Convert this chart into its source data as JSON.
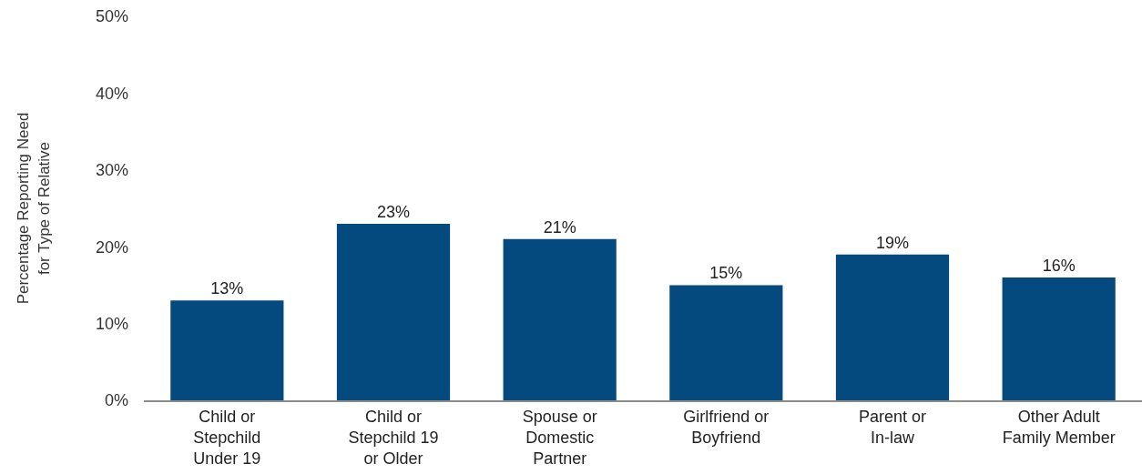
{
  "chart_data": {
    "type": "bar",
    "ylabel": "Percentage Reporting Need for Type of Relative",
    "categories": [
      "Child or Stepchild Under 19",
      "Child or Stepchild 19 or Older",
      "Spouse or Domestic Partner",
      "Girlfriend or Boyfriend",
      "Parent or In-law",
      "Other Adult Family Member"
    ],
    "values": [
      13,
      23,
      21,
      15,
      19,
      16
    ],
    "value_labels": [
      "13%",
      "23%",
      "21%",
      "15%",
      "19%",
      "16%"
    ],
    "color": "#044a7f",
    "ylim": [
      0,
      50
    ],
    "yticks": [
      {
        "value": 0,
        "label": "0%"
      },
      {
        "value": 10,
        "label": "10%"
      },
      {
        "value": 20,
        "label": "20%"
      },
      {
        "value": 30,
        "label": "30%"
      },
      {
        "value": 40,
        "label": "40%"
      },
      {
        "value": 50,
        "label": "50%"
      }
    ]
  }
}
